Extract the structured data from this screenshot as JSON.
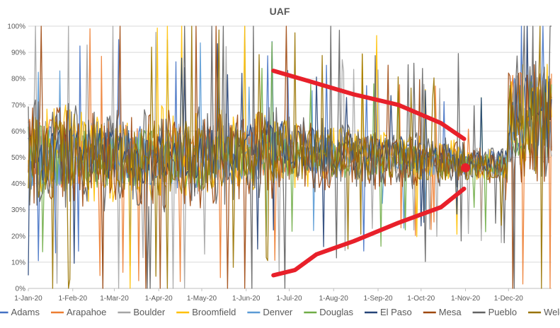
{
  "chart_data": {
    "type": "line",
    "title": "UAF",
    "xlabel": "",
    "ylabel": "",
    "x_range": [
      "2020-01-01",
      "2020-12-31"
    ],
    "x_tick_labels": [
      "1-Jan-20",
      "1-Feb-20",
      "1-Mar-20",
      "1-Apr-20",
      "1-May-20",
      "1-Jun-20",
      "1-Jul-20",
      "1-Aug-20",
      "1-Sep-20",
      "1-Oct-20",
      "1-Nov-20",
      "1-Dec-20"
    ],
    "y_tick_labels": [
      "0%",
      "10%",
      "20%",
      "30%",
      "40%",
      "50%",
      "60%",
      "70%",
      "80%",
      "90%",
      "100%"
    ],
    "ylim": [
      0,
      100
    ],
    "grid": "horizontal",
    "legend_position": "bottom",
    "series": [
      {
        "name": "Adams",
        "color": "#4472C4",
        "base": [
          50,
          50,
          51,
          50,
          51,
          53,
          52,
          50,
          50,
          49,
          48,
          65
        ],
        "amplitude": [
          9,
          8,
          8,
          9,
          8,
          7,
          6,
          6,
          5,
          4,
          3,
          12
        ]
      },
      {
        "name": "Arapahoe",
        "color": "#ED7D31",
        "base": [
          51,
          50,
          50,
          51,
          50,
          52,
          51,
          50,
          49,
          48,
          47,
          63
        ],
        "amplitude": [
          10,
          9,
          9,
          10,
          9,
          8,
          7,
          6,
          5,
          4,
          3,
          14
        ]
      },
      {
        "name": "Boulder",
        "color": "#A5A5A5",
        "base": [
          52,
          51,
          50,
          50,
          51,
          52,
          51,
          50,
          50,
          49,
          48,
          64
        ],
        "amplitude": [
          11,
          10,
          9,
          10,
          9,
          8,
          7,
          6,
          5,
          5,
          4,
          13
        ]
      },
      {
        "name": "Broomfield",
        "color": "#FFC000",
        "base": [
          52,
          50,
          50,
          52,
          52,
          53,
          51,
          51,
          50,
          49,
          48,
          64
        ],
        "amplitude": [
          14,
          13,
          12,
          13,
          12,
          11,
          9,
          8,
          7,
          6,
          5,
          16
        ]
      },
      {
        "name": "Denver",
        "color": "#5B9BD5",
        "base": [
          49,
          50,
          49,
          50,
          51,
          52,
          51,
          50,
          49,
          48,
          47,
          62
        ],
        "amplitude": [
          7,
          7,
          7,
          8,
          7,
          6,
          5,
          5,
          4,
          4,
          3,
          10
        ]
      },
      {
        "name": "Douglas",
        "color": "#70AD47",
        "base": [
          50,
          49,
          50,
          50,
          50,
          51,
          50,
          49,
          49,
          48,
          47,
          63
        ],
        "amplitude": [
          9,
          8,
          8,
          9,
          8,
          7,
          6,
          5,
          5,
          4,
          3,
          12
        ]
      },
      {
        "name": "El Paso",
        "color": "#264478",
        "base": [
          51,
          52,
          51,
          52,
          53,
          54,
          53,
          52,
          51,
          50,
          49,
          66
        ],
        "amplitude": [
          8,
          8,
          8,
          8,
          7,
          7,
          6,
          5,
          5,
          4,
          3,
          11
        ]
      },
      {
        "name": "Mesa",
        "color": "#9E480E",
        "base": [
          50,
          49,
          50,
          49,
          50,
          51,
          50,
          49,
          48,
          48,
          47,
          62
        ],
        "amplitude": [
          14,
          13,
          13,
          14,
          13,
          12,
          10,
          8,
          7,
          6,
          5,
          18
        ]
      },
      {
        "name": "Pueblo",
        "color": "#636363",
        "base": [
          51,
          50,
          50,
          50,
          51,
          52,
          51,
          50,
          49,
          48,
          47,
          64
        ],
        "amplitude": [
          16,
          15,
          14,
          15,
          14,
          13,
          11,
          9,
          8,
          7,
          5,
          18
        ]
      },
      {
        "name": "Weld",
        "color": "#997300",
        "base": [
          50,
          50,
          50,
          50,
          51,
          52,
          51,
          50,
          49,
          48,
          47,
          63
        ],
        "amplitude": [
          11,
          10,
          10,
          11,
          10,
          9,
          8,
          7,
          6,
          5,
          4,
          14
        ]
      }
    ],
    "annotations": [
      {
        "type": "line",
        "color": "#E8202A",
        "points": [
          [
            "2020-06-20",
            83
          ],
          [
            "2020-07-15",
            79
          ],
          [
            "2020-08-15",
            74
          ],
          [
            "2020-09-15",
            70
          ],
          [
            "2020-10-15",
            63
          ],
          [
            "2020-10-31",
            57
          ]
        ]
      },
      {
        "type": "line",
        "color": "#E8202A",
        "points": [
          [
            "2020-06-20",
            5
          ],
          [
            "2020-07-05",
            7
          ],
          [
            "2020-07-20",
            13
          ],
          [
            "2020-08-15",
            18
          ],
          [
            "2020-09-15",
            25
          ],
          [
            "2020-10-15",
            31
          ],
          [
            "2020-10-31",
            38
          ]
        ]
      },
      {
        "type": "point",
        "color": "#E8202A",
        "x": "2020-11-01",
        "y": 46
      }
    ]
  }
}
